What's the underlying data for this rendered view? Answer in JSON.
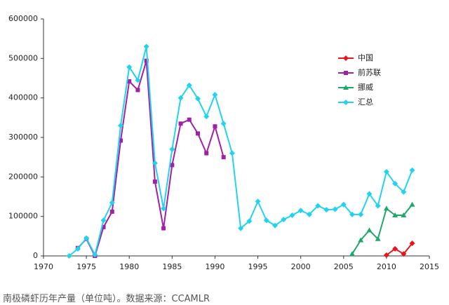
{
  "chart_data": {
    "type": "line",
    "caption": "南极磷虾历年产量（单位吨）。数据来源：CCAMLR",
    "x": [
      1973,
      1974,
      1975,
      1976,
      1977,
      1978,
      1979,
      1980,
      1981,
      1982,
      1983,
      1984,
      1985,
      1986,
      1987,
      1988,
      1989,
      1990,
      1991,
      1992,
      1993,
      1994,
      1995,
      1996,
      1997,
      1998,
      1999,
      2000,
      2001,
      2002,
      2003,
      2004,
      2005,
      2006,
      2007,
      2008,
      2009,
      2010,
      2011,
      2012,
      2013
    ],
    "series": [
      {
        "name": "中国",
        "color": "#e8141e",
        "marker": "diamond",
        "values": [
          null,
          null,
          null,
          null,
          null,
          null,
          null,
          null,
          null,
          null,
          null,
          null,
          null,
          null,
          null,
          null,
          null,
          null,
          null,
          null,
          null,
          null,
          null,
          null,
          null,
          null,
          null,
          null,
          null,
          null,
          null,
          null,
          null,
          null,
          null,
          null,
          null,
          2000,
          18000,
          5000,
          32000
        ]
      },
      {
        "name": "前苏联",
        "color": "#a020a8",
        "marker": "square",
        "values": [
          null,
          20000,
          43000,
          0,
          73000,
          112000,
          292000,
          442000,
          420000,
          494000,
          188000,
          70000,
          230000,
          335000,
          345000,
          310000,
          260000,
          328000,
          250000,
          null,
          null,
          null,
          null,
          null,
          null,
          null,
          null,
          null,
          null,
          null,
          null,
          null,
          null,
          null,
          null,
          null,
          null,
          null,
          null,
          null,
          null
        ]
      },
      {
        "name": "挪威",
        "color": "#1ea86a",
        "marker": "triangle",
        "values": [
          null,
          null,
          null,
          null,
          null,
          null,
          null,
          null,
          null,
          null,
          null,
          null,
          null,
          null,
          null,
          null,
          null,
          null,
          null,
          null,
          null,
          null,
          null,
          null,
          null,
          null,
          null,
          null,
          null,
          null,
          null,
          null,
          null,
          5000,
          40000,
          65000,
          43000,
          120000,
          103000,
          103000,
          130000
        ]
      },
      {
        "name": "汇总",
        "color": "#22d3f0",
        "marker": "diamond",
        "values": [
          0,
          18000,
          45000,
          3000,
          90000,
          135000,
          330000,
          478000,
          445000,
          530000,
          235000,
          120000,
          270000,
          400000,
          432000,
          398000,
          353000,
          408000,
          335000,
          260000,
          70000,
          88000,
          138000,
          90000,
          77000,
          92000,
          103000,
          115000,
          105000,
          127000,
          117000,
          118000,
          130000,
          105000,
          105000,
          157000,
          127000,
          213000,
          183000,
          162000,
          217000
        ]
      }
    ],
    "xlim": [
      1970,
      2015
    ],
    "xticks": [
      1970,
      1975,
      1980,
      1985,
      1990,
      1995,
      2000,
      2005,
      2010,
      2015
    ],
    "ylim": [
      0,
      600000
    ],
    "yticks": [
      0,
      100000,
      200000,
      300000,
      400000,
      500000,
      600000
    ],
    "grid": false,
    "legend": "upper right"
  }
}
